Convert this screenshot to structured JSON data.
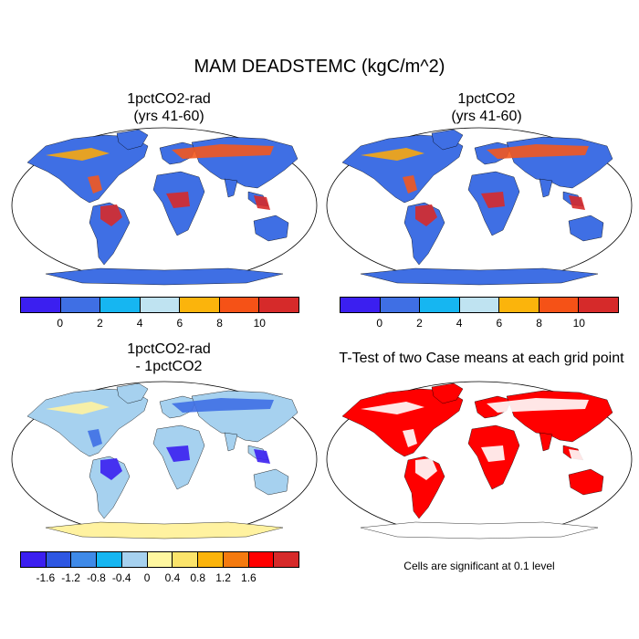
{
  "title": "MAM DEADSTEMC (kgC/m^2)",
  "panels": [
    {
      "title_line1": "1pctCO2-rad",
      "title_line2": "(yrs 41-60)",
      "fill": "#3f6fe4",
      "hot": [
        "#d62a2a",
        "#f2581f",
        "#f7a70f"
      ]
    },
    {
      "title_line1": "1pctCO2",
      "title_line2": "(yrs 41-60)",
      "fill": "#3f6fe4",
      "hot": [
        "#d62a2a",
        "#f2581f",
        "#f7a70f"
      ]
    },
    {
      "title_line1": "1pctCO2-rad",
      "title_line2": "- 1pctCO2",
      "fill": "#a6d1ef",
      "hot": [
        "#3b1ff0",
        "#3f6fe4",
        "#fff2a0"
      ]
    },
    {
      "title_line1": "T-Test of two Case means at each grid point",
      "title_line2": "",
      "fill": "#ff0000",
      "hot": [
        "#ffffff",
        "#ffffff",
        "#ffffff"
      ]
    }
  ],
  "colorbars": [
    {
      "colors": [
        "#3b1ff0",
        "#3f6fe4",
        "#16b6f1",
        "#bfe3f1",
        "#fbb40c",
        "#f55217",
        "#d62a2a"
      ],
      "labels": [
        "0",
        "2",
        "4",
        "6",
        "8",
        "10"
      ]
    },
    {
      "colors": [
        "#3b1ff0",
        "#3f6fe4",
        "#16b6f1",
        "#bfe3f1",
        "#fbb40c",
        "#f55217",
        "#d62a2a"
      ],
      "labels": [
        "0",
        "2",
        "4",
        "6",
        "8",
        "10"
      ]
    },
    {
      "colors": [
        "#3b1ff0",
        "#2e57e2",
        "#3f8ae8",
        "#16b6f1",
        "#a6d1ef",
        "#fff7a0",
        "#fbe46b",
        "#fbb40c",
        "#f47a0f",
        "#ff0000",
        "#d62a2a"
      ],
      "labels": [
        "-1.6",
        "-1.2",
        "-0.8",
        "-0.4",
        "0",
        "0.4",
        "0.8",
        "1.2",
        "1.6"
      ]
    }
  ],
  "significance_note": "Cells are significant at 0.1 level",
  "antarctica_fill": [
    "#3f6fe4",
    "#3f6fe4",
    "#fff2a0",
    "#ffffff"
  ]
}
